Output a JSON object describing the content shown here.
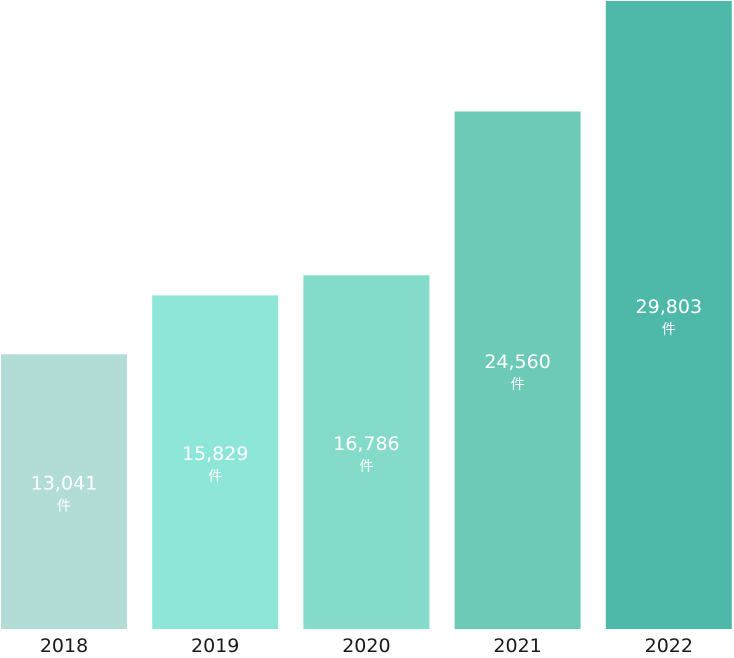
{
  "chart_data": {
    "type": "bar",
    "categories": [
      "2018",
      "2019",
      "2020",
      "2021",
      "2022"
    ],
    "values": [
      13041,
      15829,
      16786,
      24560,
      29803
    ],
    "value_labels": [
      "13,041",
      "15,829",
      "16,786",
      "24,560",
      "29,803"
    ],
    "unit_label": "件",
    "title": "",
    "xlabel": "",
    "ylabel": "",
    "ylim": [
      0,
      29803
    ],
    "grid": false,
    "legend": "none",
    "colors": [
      "#b2ddd6",
      "#8de6d7",
      "#85dbc9",
      "#6ccab6",
      "#4eb9a9"
    ]
  }
}
